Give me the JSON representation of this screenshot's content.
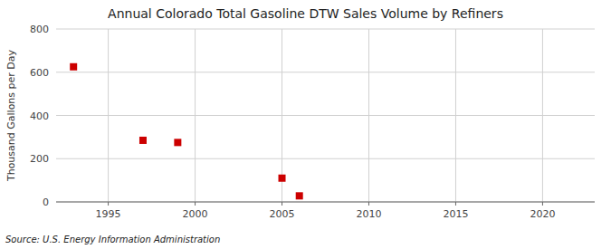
{
  "chart_data": {
    "type": "scatter",
    "title": "Annual Colorado Total Gasoline DTW Sales Volume by Refiners",
    "ylabel": "Thousand Gallons per Day",
    "source": "Source: U.S. Energy Information Administration",
    "x": [
      1993,
      1997,
      1999,
      2005,
      2006
    ],
    "values": [
      625,
      285,
      275,
      110,
      28
    ],
    "color": "#cc0000",
    "marker": "square",
    "xlim": [
      1992,
      2023
    ],
    "ylim": [
      0,
      800
    ],
    "xticks": [
      1995,
      2000,
      2005,
      2010,
      2015,
      2020
    ],
    "yticks": [
      0,
      200,
      400,
      600,
      800
    ],
    "grid": true
  }
}
